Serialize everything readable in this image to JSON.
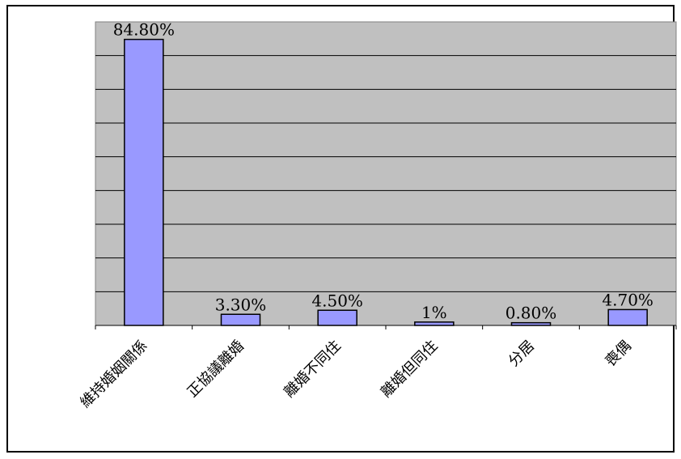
{
  "chart_data": {
    "type": "bar",
    "categories": [
      "維持婚姻關係",
      "正協議離婚",
      "離婚不同住",
      "離婚但同住",
      "分居",
      "喪偶"
    ],
    "values": [
      84.8,
      3.3,
      4.5,
      1.0,
      0.8,
      4.7
    ],
    "value_labels": [
      "84.80%",
      "3.30%",
      "4.50%",
      "1%",
      "0.80%",
      "4.70%"
    ],
    "title": "",
    "xlabel": "",
    "ylabel": "",
    "ylim": [
      0,
      90
    ],
    "grid": true,
    "legend": "none",
    "colors": {
      "bar_fill": "#9999ff",
      "bar_stroke": "#000000",
      "plot_background": "#c0c0c0",
      "gridline": "#000000"
    }
  }
}
